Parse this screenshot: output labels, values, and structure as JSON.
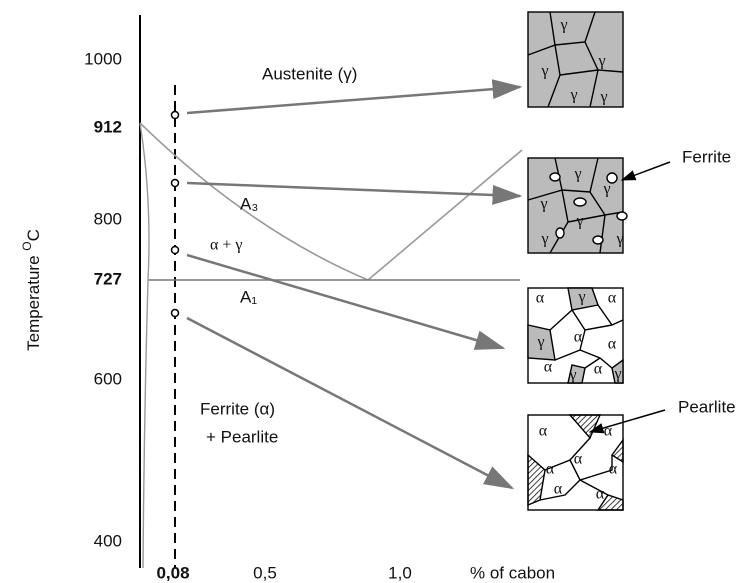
{
  "axis": {
    "label": "Temperature ",
    "label_sup": "O",
    "label_unit": "C",
    "yticks": [
      "1000",
      "912",
      "800",
      "727",
      "600",
      "400"
    ],
    "xticks": [
      "0,08",
      "0,5",
      "1,0"
    ],
    "xlabel": "% of cabon"
  },
  "regions": {
    "austenite": "Austenite (γ)",
    "a3": "A₃",
    "alpha_gamma": "α + γ",
    "a1": "A₁",
    "ferrite": "Ferrite (α)",
    "pearlite": "+ Pearlite"
  },
  "callouts": {
    "ferrite": "Ferrite",
    "pearlite": "Pearlite"
  },
  "boxes": [
    {
      "symbols": [
        "γ",
        "γ",
        "γ",
        "γ",
        "γ"
      ]
    },
    {
      "symbols": [
        "γ",
        "γ",
        "γ",
        "γ",
        "γ",
        "γ"
      ]
    },
    {
      "symbols": [
        "α",
        "γ",
        "α",
        "γ",
        "α",
        "α",
        "α",
        "γ",
        "α",
        "γ"
      ]
    },
    {
      "symbols": [
        "α",
        "α",
        "α",
        "α",
        "α",
        "α",
        "α"
      ]
    }
  ]
}
